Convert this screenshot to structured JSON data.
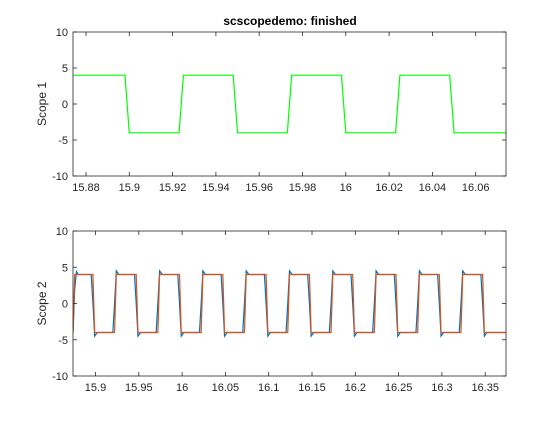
{
  "window": {
    "title": "scscopedemo: finished"
  },
  "colors": {
    "background": "#ffffff",
    "axis": "#262626",
    "scope1_trace": "#00ff00",
    "scope2_trace_a": "#0072bd",
    "scope2_trace_b": "#d95319"
  },
  "chart_data": [
    {
      "type": "line",
      "title": "scscopedemo: finished",
      "xlabel": "",
      "ylabel": "Scope 1",
      "xlim": [
        15.874,
        16.074
      ],
      "ylim": [
        -10,
        10
      ],
      "xticks": [
        15.88,
        15.9,
        15.92,
        15.94,
        15.96,
        15.98,
        16,
        16.02,
        16.04,
        16.06
      ],
      "xtick_labels": [
        "15.88",
        "15.9",
        "15.92",
        "15.94",
        "15.96",
        "15.98",
        "16",
        "16.02",
        "16.04",
        "16.06"
      ],
      "yticks": [
        -10,
        -5,
        0,
        5,
        10
      ],
      "ytick_labels": [
        "-10",
        "-5",
        "0",
        "5",
        "10"
      ],
      "grid": false,
      "series": [
        {
          "color": "#00ff00",
          "x": [
            15.874,
            15.898,
            15.9,
            15.923,
            15.925,
            15.948,
            15.95,
            15.973,
            15.975,
            15.998,
            16.0,
            16.023,
            16.025,
            16.048,
            16.05,
            16.074
          ],
          "y": [
            4,
            4,
            -4,
            -4,
            4,
            4,
            -4,
            -4,
            4,
            4,
            -4,
            -4,
            4,
            4,
            -4,
            -4
          ]
        }
      ]
    },
    {
      "type": "line",
      "title": "",
      "xlabel": "",
      "ylabel": "Scope 2",
      "xlim": [
        15.874,
        16.374
      ],
      "ylim": [
        -10,
        10
      ],
      "xticks": [
        15.9,
        15.95,
        16,
        16.05,
        16.1,
        16.15,
        16.2,
        16.25,
        16.3,
        16.35
      ],
      "xtick_labels": [
        "15.9",
        "15.95",
        "16",
        "16.05",
        "16.1",
        "16.15",
        "16.2",
        "16.25",
        "16.3",
        "16.35"
      ],
      "yticks": [
        -10,
        -5,
        0,
        5,
        10
      ],
      "ytick_labels": [
        "-10",
        "-5",
        "0",
        "5",
        "10"
      ],
      "grid": false,
      "series": [
        {
          "color": "#0072bd",
          "x": [
            15.874,
            15.876,
            15.878,
            15.88,
            15.886,
            15.892,
            15.895,
            15.897,
            15.899,
            15.902,
            15.906,
            15.917,
            15.92,
            15.922,
            15.924,
            15.927,
            15.931,
            15.942,
            15.945,
            15.947,
            15.949,
            15.952,
            15.956,
            15.967,
            15.97,
            15.972,
            15.974,
            15.977,
            15.981,
            15.992,
            15.995,
            15.997,
            15.999,
            16.002,
            16.006,
            16.017,
            16.02,
            16.022,
            16.024,
            16.027,
            16.031,
            16.042,
            16.045,
            16.047,
            16.049,
            16.052,
            16.056,
            16.067,
            16.07,
            16.072,
            16.074,
            16.077,
            16.081,
            16.092,
            16.095,
            16.097,
            16.099,
            16.102,
            16.106,
            16.117,
            16.12,
            16.122,
            16.124,
            16.127,
            16.131,
            16.142,
            16.145,
            16.147,
            16.149,
            16.152,
            16.156,
            16.167,
            16.17,
            16.172,
            16.174,
            16.177,
            16.181,
            16.192,
            16.195,
            16.197,
            16.199,
            16.202,
            16.206,
            16.217,
            16.22,
            16.222,
            16.224,
            16.227,
            16.231,
            16.242,
            16.245,
            16.247,
            16.249,
            16.252,
            16.256,
            16.267,
            16.27,
            16.272,
            16.274,
            16.277,
            16.281,
            16.292,
            16.295,
            16.297,
            16.299,
            16.302,
            16.306,
            16.317,
            16.32,
            16.322,
            16.324,
            16.327,
            16.331,
            16.342,
            16.345,
            16.347,
            16.349,
            16.352,
            16.356,
            16.374
          ],
          "y": [
            -4,
            2,
            4.4,
            4,
            4,
            4,
            4,
            0,
            -4.5,
            -4,
            -4,
            -4,
            -4,
            0,
            4.5,
            4,
            4,
            4,
            4,
            0,
            -4.5,
            -4,
            -4,
            -4,
            -4,
            0,
            4.5,
            4,
            4,
            4,
            4,
            0,
            -4.5,
            -4,
            -4,
            -4,
            -4,
            0,
            4.5,
            4,
            4,
            4,
            4,
            0,
            -4.5,
            -4,
            -4,
            -4,
            -4,
            0,
            4.5,
            4,
            4,
            4,
            4,
            0,
            -4.5,
            -4,
            -4,
            -4,
            -4,
            0,
            4.5,
            4,
            4,
            4,
            4,
            0,
            -4.5,
            -4,
            -4,
            -4,
            -4,
            0,
            4.5,
            4,
            4,
            4,
            4,
            0,
            -4.5,
            -4,
            -4,
            -4,
            -4,
            0,
            4.5,
            4,
            4,
            4,
            4,
            0,
            -4.5,
            -4,
            -4,
            -4,
            -4,
            0,
            4.5,
            4,
            4,
            4,
            4,
            0,
            -4.5,
            -4,
            -4,
            -4,
            -4,
            0,
            4.5,
            4,
            4,
            4,
            4,
            0,
            -4.5,
            -4,
            -4,
            -4
          ]
        },
        {
          "color": "#d95319",
          "x": [
            15.874,
            15.876,
            15.897,
            15.899,
            15.922,
            15.924,
            15.947,
            15.949,
            15.972,
            15.974,
            15.997,
            15.999,
            16.022,
            16.024,
            16.047,
            16.049,
            16.072,
            16.074,
            16.097,
            16.099,
            16.122,
            16.124,
            16.147,
            16.149,
            16.172,
            16.174,
            16.197,
            16.199,
            16.222,
            16.224,
            16.247,
            16.249,
            16.272,
            16.274,
            16.297,
            16.299,
            16.322,
            16.324,
            16.347,
            16.349,
            16.374
          ],
          "y": [
            -4,
            4,
            4,
            -4,
            -4,
            4,
            4,
            -4,
            -4,
            4,
            4,
            -4,
            -4,
            4,
            4,
            -4,
            -4,
            4,
            4,
            -4,
            -4,
            4,
            4,
            -4,
            -4,
            4,
            4,
            -4,
            -4,
            4,
            4,
            -4,
            -4,
            4,
            4,
            -4,
            -4,
            4,
            4,
            -4,
            -4
          ]
        }
      ]
    }
  ]
}
